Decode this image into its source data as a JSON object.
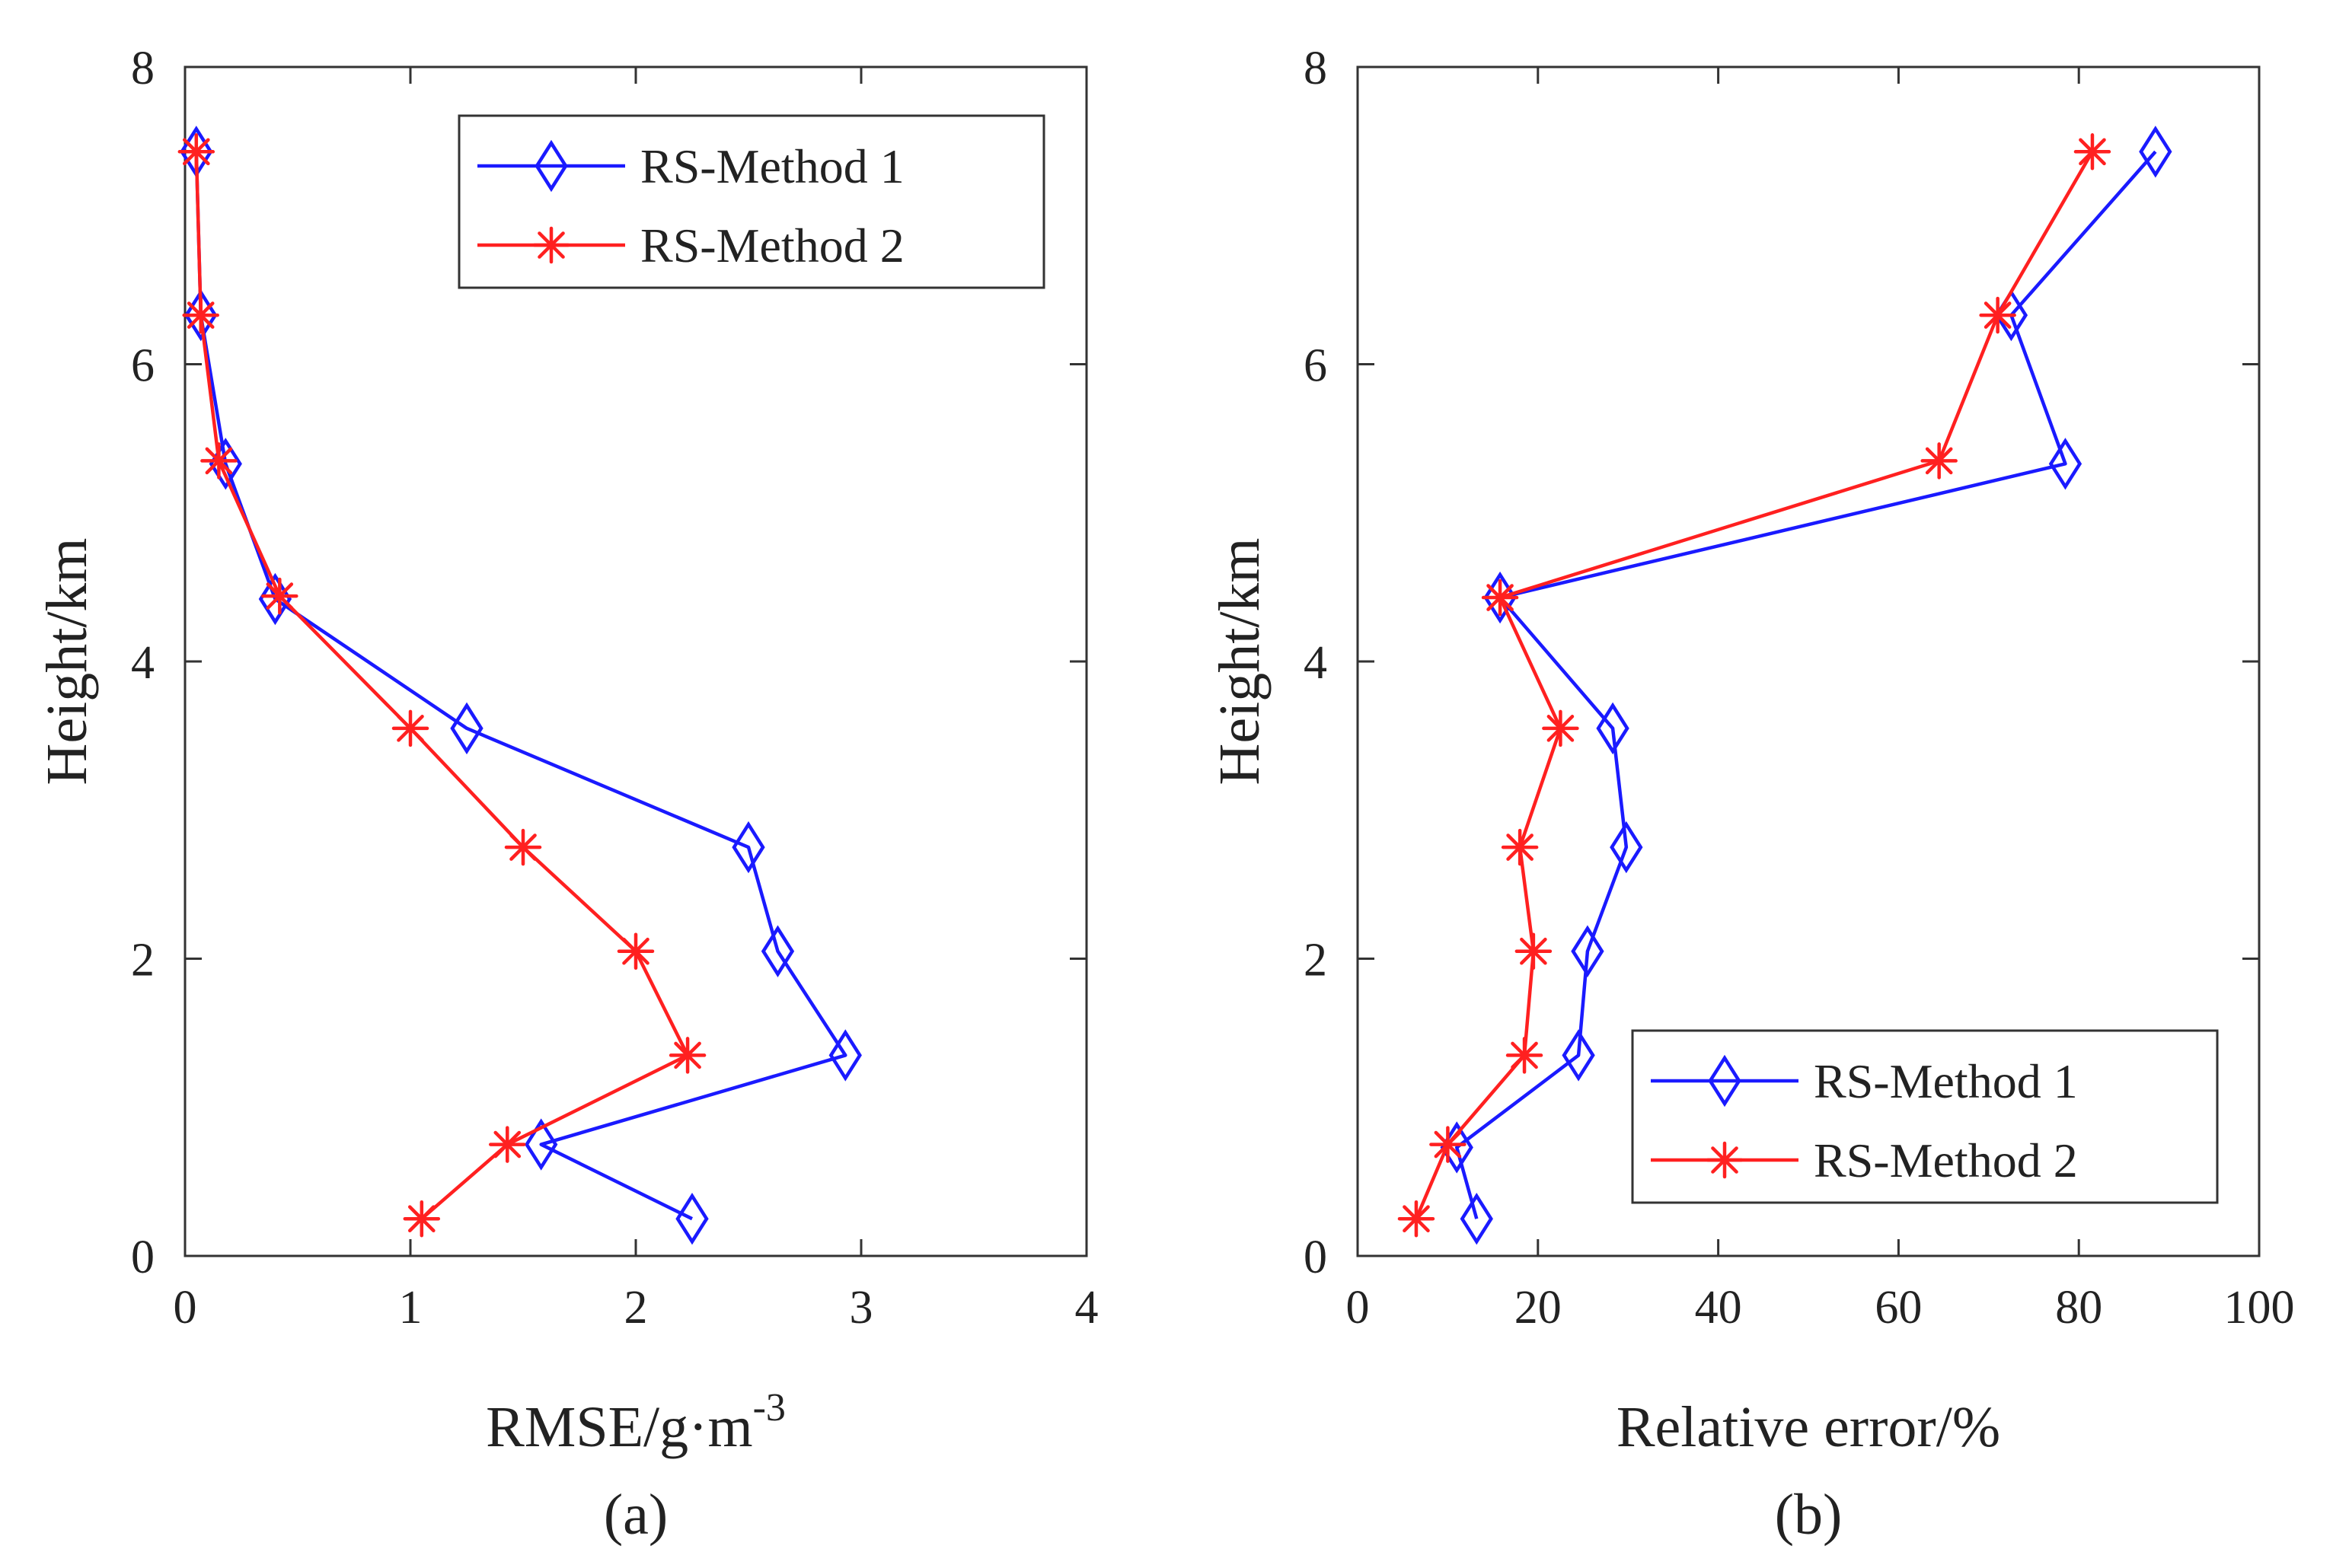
{
  "chart_data": [
    {
      "type": "line",
      "id": "panel-a",
      "panel_label": "(a)",
      "xlabel": "RMSE/g·m",
      "xlabel_superscript": "-3",
      "ylabel": "Height/km",
      "xlim": [
        0,
        4
      ],
      "ylim": [
        0,
        8
      ],
      "xticks": [
        "0",
        "1",
        "2",
        "3",
        "4"
      ],
      "yticks": [
        "0",
        "2",
        "4",
        "6",
        "8"
      ],
      "legend_position": "top-right",
      "series": [
        {
          "name": "RS-Method 1",
          "color": "#1a1aff",
          "marker": "diamond",
          "points": [
            [
              2.25,
              0.25
            ],
            [
              1.58,
              0.75
            ],
            [
              2.93,
              1.35
            ],
            [
              2.63,
              2.05
            ],
            [
              2.5,
              2.75
            ],
            [
              1.25,
              3.55
            ],
            [
              0.4,
              4.42
            ],
            [
              0.18,
              5.33
            ],
            [
              0.07,
              6.33
            ],
            [
              0.05,
              7.43
            ]
          ]
        },
        {
          "name": "RS-Method 2",
          "color": "#ff2020",
          "marker": "star",
          "points": [
            [
              1.05,
              0.25
            ],
            [
              1.43,
              0.75
            ],
            [
              2.23,
              1.35
            ],
            [
              2.0,
              2.05
            ],
            [
              1.5,
              2.75
            ],
            [
              1.0,
              3.55
            ],
            [
              0.42,
              4.44
            ],
            [
              0.15,
              5.35
            ],
            [
              0.07,
              6.33
            ],
            [
              0.05,
              7.43
            ]
          ]
        }
      ]
    },
    {
      "type": "line",
      "id": "panel-b",
      "panel_label": "(b)",
      "xlabel": "Relative error/%",
      "xlabel_superscript": "",
      "ylabel": "Height/km",
      "xlim": [
        0,
        100
      ],
      "ylim": [
        0,
        8
      ],
      "xticks": [
        "0",
        "20",
        "40",
        "60",
        "80",
        "100"
      ],
      "yticks": [
        "0",
        "2",
        "4",
        "6",
        "8"
      ],
      "legend_position": "bottom-right",
      "series": [
        {
          "name": "RS-Method 1",
          "color": "#1a1aff",
          "marker": "diamond",
          "points": [
            [
              13.2,
              0.25
            ],
            [
              11.0,
              0.73
            ],
            [
              24.5,
              1.35
            ],
            [
              25.5,
              2.05
            ],
            [
              29.8,
              2.75
            ],
            [
              28.3,
              3.55
            ],
            [
              15.8,
              4.43
            ],
            [
              78.5,
              5.33
            ],
            [
              72.5,
              6.33
            ],
            [
              88.5,
              7.43
            ]
          ]
        },
        {
          "name": "RS-Method 2",
          "color": "#ff2020",
          "marker": "star",
          "points": [
            [
              6.5,
              0.25
            ],
            [
              10.0,
              0.75
            ],
            [
              18.5,
              1.35
            ],
            [
              19.5,
              2.05
            ],
            [
              18.0,
              2.75
            ],
            [
              22.5,
              3.55
            ],
            [
              15.8,
              4.43
            ],
            [
              64.5,
              5.35
            ],
            [
              71.0,
              6.33
            ],
            [
              81.5,
              7.43
            ]
          ]
        }
      ]
    }
  ]
}
